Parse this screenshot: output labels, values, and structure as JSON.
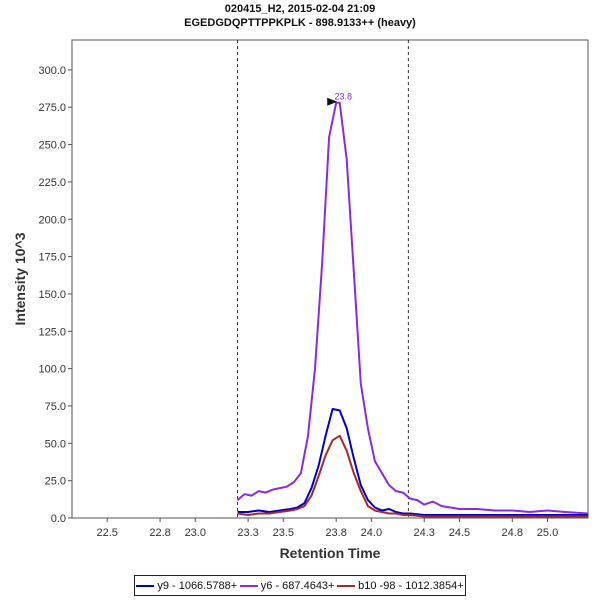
{
  "chart_data": {
    "type": "line",
    "title_line1": "020415_H2, 2015-02-04 21:09",
    "title_line2": "EGEDGDQPTTPPKPLK - 898.9133++ (heavy)",
    "xlabel": "Retention Time",
    "ylabel": "Intensity 10^3",
    "xlim": [
      22.3,
      25.23
    ],
    "ylim": [
      0,
      320
    ],
    "x_ticks": [
      22.5,
      22.8,
      23.0,
      23.3,
      23.5,
      23.8,
      24.0,
      24.3,
      24.5,
      24.8,
      25.0
    ],
    "x_tick_labels": [
      "22.5",
      "22.8",
      "23.0",
      "23.3",
      "23.5",
      "23.8",
      "24.0",
      "24.3",
      "24.5",
      "24.8",
      "25.0"
    ],
    "y_ticks": [
      0,
      25,
      50,
      75,
      100,
      125,
      150,
      175,
      200,
      225,
      250,
      275,
      300
    ],
    "y_tick_labels": [
      "0.0",
      "25.0",
      "50.0",
      "75.0",
      "100.0",
      "125.0",
      "150.0",
      "175.0",
      "200.0",
      "225.0",
      "250.0",
      "275.0",
      "300.0"
    ],
    "boundaries": [
      23.24,
      24.21
    ],
    "peak": {
      "x": 23.84,
      "y": 278,
      "label": "23.8"
    },
    "series": [
      {
        "name": "y6 - 687.4643+",
        "color": "#8a2be2",
        "x": [
          23.24,
          23.28,
          23.32,
          23.36,
          23.4,
          23.44,
          23.48,
          23.52,
          23.56,
          23.6,
          23.64,
          23.68,
          23.72,
          23.76,
          23.8,
          23.82,
          23.86,
          23.9,
          23.94,
          23.98,
          24.02,
          24.06,
          24.1,
          24.14,
          24.18,
          24.22,
          24.26,
          24.3,
          24.35,
          24.4,
          24.45,
          24.5,
          24.6,
          24.7,
          24.8,
          24.9,
          25.0,
          25.1,
          25.23
        ],
        "y": [
          12,
          16,
          15,
          18,
          17,
          19,
          20,
          21,
          24,
          30,
          55,
          100,
          170,
          255,
          278,
          278,
          240,
          165,
          90,
          60,
          38,
          30,
          22,
          18,
          17,
          13,
          12,
          9,
          11,
          8,
          7,
          6,
          6,
          5,
          5,
          4,
          5,
          4,
          3
        ]
      },
      {
        "name": "y9 - 1066.5788+",
        "color": "#0000cc",
        "x": [
          23.24,
          23.3,
          23.36,
          23.42,
          23.48,
          23.54,
          23.58,
          23.62,
          23.66,
          23.7,
          23.74,
          23.78,
          23.82,
          23.86,
          23.9,
          23.94,
          23.98,
          24.02,
          24.06,
          24.1,
          24.14,
          24.18,
          24.22,
          24.3,
          24.4,
          24.5,
          24.6,
          24.7,
          24.8,
          24.9,
          25.0,
          25.1,
          25.23
        ],
        "y": [
          4,
          4,
          5,
          4,
          5,
          6,
          7,
          10,
          20,
          35,
          55,
          73,
          72,
          60,
          40,
          22,
          12,
          7,
          5,
          6,
          4,
          3,
          3,
          2,
          2,
          2,
          2,
          2,
          2,
          2,
          2,
          2,
          2
        ]
      },
      {
        "name": "b10 -98 - 1012.3854+",
        "color": "#a52a2a",
        "x": [
          23.24,
          23.3,
          23.36,
          23.42,
          23.48,
          23.54,
          23.58,
          23.62,
          23.66,
          23.7,
          23.74,
          23.78,
          23.82,
          23.86,
          23.9,
          23.94,
          23.98,
          24.02,
          24.06,
          24.1,
          24.14,
          24.18,
          24.22,
          24.3,
          24.4,
          24.5,
          24.6,
          24.7,
          24.8,
          24.9,
          25.0,
          25.1,
          25.23
        ],
        "y": [
          3,
          2,
          3,
          3,
          4,
          5,
          6,
          8,
          15,
          28,
          42,
          52,
          55,
          45,
          30,
          18,
          8,
          5,
          4,
          3,
          3,
          2,
          2,
          1,
          1,
          1,
          1,
          1,
          1,
          1,
          1,
          1,
          1
        ]
      }
    ]
  }
}
